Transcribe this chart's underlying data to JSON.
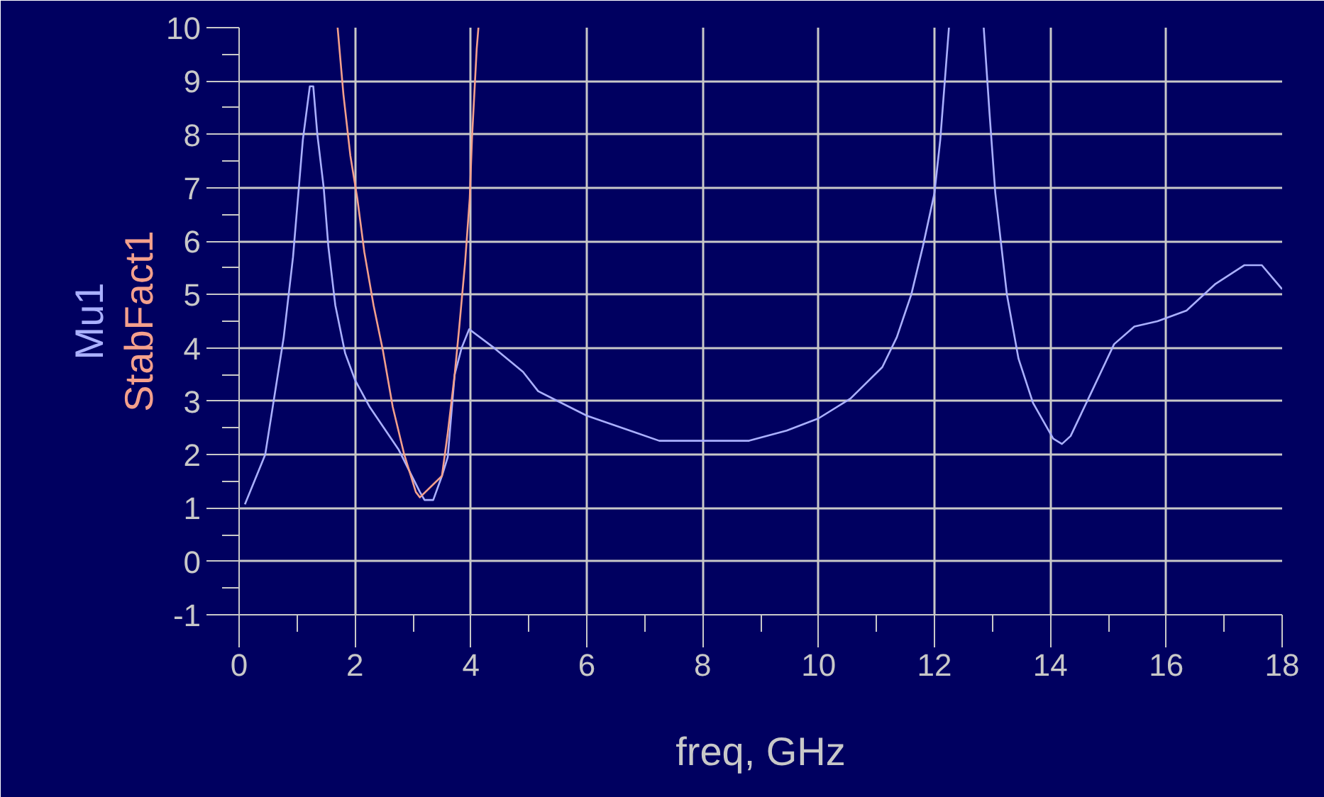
{
  "chart_data": {
    "type": "line",
    "xlabel": "freq, GHz",
    "series": [
      {
        "name": "Mu1",
        "color": "#aab0ff",
        "x": [
          0.1,
          0.45,
          0.77,
          0.93,
          1.1,
          1.22,
          1.28,
          1.35,
          1.46,
          1.54,
          1.66,
          1.83,
          2.0,
          2.25,
          2.75,
          3.12,
          3.2,
          3.35,
          3.5,
          3.6,
          3.72,
          3.84,
          3.97,
          4.4,
          4.9,
          5.16,
          6.0,
          6.85,
          7.25,
          8.0,
          8.8,
          9.45,
          10.0,
          10.55,
          11.1,
          11.35,
          11.6,
          11.8,
          12.0,
          12.1,
          12.2,
          12.25,
          12.5,
          12.85,
          12.95,
          13.05,
          13.25,
          13.45,
          13.7,
          14.05,
          14.2,
          14.35,
          14.7,
          15.1,
          15.45,
          15.85,
          16.35,
          16.85,
          17.35,
          17.65,
          18.0
        ],
        "values": [
          1.07,
          2.0,
          4.2,
          5.7,
          7.9,
          8.9,
          8.9,
          8.0,
          7.0,
          5.9,
          4.8,
          3.9,
          3.4,
          2.9,
          2.1,
          1.3,
          1.15,
          1.15,
          1.6,
          1.95,
          3.5,
          4.0,
          4.35,
          4.0,
          3.55,
          3.19,
          2.73,
          2.41,
          2.26,
          2.26,
          2.26,
          2.45,
          2.68,
          3.05,
          3.64,
          4.2,
          5.0,
          5.9,
          6.9,
          7.9,
          9.3,
          10,
          null,
          10,
          8.4,
          6.9,
          5.0,
          3.8,
          2.97,
          2.3,
          2.2,
          2.35,
          3.15,
          4.07,
          4.4,
          4.5,
          4.7,
          5.2,
          5.55,
          5.55,
          5.1
        ]
      },
      {
        "name": "StabFact1",
        "color": "#f4a08c",
        "x": [
          1.7,
          1.8,
          1.92,
          2.04,
          2.16,
          2.32,
          2.48,
          2.65,
          2.85,
          3.05,
          3.12,
          3.5,
          3.6,
          3.72,
          3.8,
          3.9,
          3.98,
          4.02,
          4.1,
          4.13
        ],
        "values": [
          10,
          8.75,
          7.6,
          6.8,
          5.8,
          4.8,
          3.96,
          2.9,
          2.0,
          1.3,
          1.2,
          1.6,
          2.4,
          3.5,
          4.4,
          5.6,
          6.8,
          7.95,
          9.6,
          10
        ]
      }
    ],
    "xlim": [
      0,
      18
    ],
    "xticks": [
      0,
      {
        "value": 1,
        "label": null
      },
      2,
      {
        "value": 3,
        "label": null
      },
      4,
      {
        "value": 5,
        "label": null
      },
      6,
      {
        "value": 7,
        "label": null
      },
      8,
      {
        "value": 9,
        "label": null
      },
      10,
      {
        "value": 11,
        "label": null
      },
      12,
      {
        "value": 13,
        "label": null
      },
      14,
      {
        "value": 15,
        "label": null
      },
      16,
      {
        "value": 17,
        "label": null
      },
      18
    ],
    "ylim": [
      -1,
      10
    ],
    "yticks": [
      -1,
      {
        "value": -0.5,
        "label": null
      },
      0,
      {
        "value": 0.5,
        "label": null
      },
      1,
      {
        "value": 1.5,
        "label": null
      },
      2,
      {
        "value": 2.5,
        "label": null
      },
      3,
      {
        "value": 3.5,
        "label": null
      },
      4,
      {
        "value": 4.5,
        "label": null
      },
      5,
      {
        "value": 5.5,
        "label": null
      },
      6,
      {
        "value": 6.5,
        "label": null
      },
      7,
      {
        "value": 7.5,
        "label": null
      },
      8,
      {
        "value": 8.5,
        "label": null
      },
      9,
      {
        "value": 9.5,
        "label": null
      },
      10
    ],
    "grid": true,
    "line_style": "solid"
  }
}
